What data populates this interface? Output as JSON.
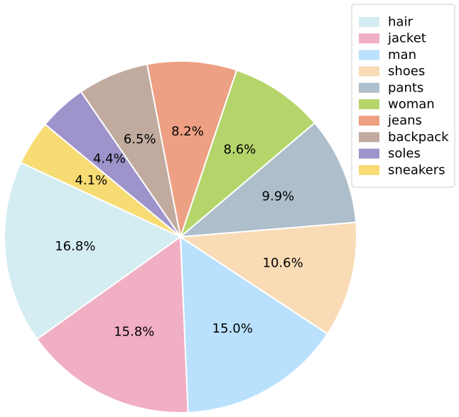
{
  "chart_data": {
    "type": "pie",
    "title": "",
    "labels": [
      "hair",
      "jacket",
      "man",
      "shoes",
      "pants",
      "woman",
      "jeans",
      "backpack",
      "soles",
      "sneakers"
    ],
    "values": [
      16.8,
      15.8,
      15.0,
      10.6,
      9.9,
      8.6,
      8.2,
      6.5,
      4.4,
      4.1
    ],
    "value_labels": [
      "16.8%",
      "15.8%",
      "15.0%",
      "10.6%",
      "9.9%",
      "8.6%",
      "8.2%",
      "6.5%",
      "4.4%",
      "4.1%"
    ],
    "colors": [
      "#d4edf2",
      "#f0afc2",
      "#b9e1fd",
      "#f9dbb6",
      "#aebfcb",
      "#b5d56b",
      "#eda083",
      "#c1ab9f",
      "#9e94cb",
      "#f7dc74"
    ],
    "start_angle_deg": 155,
    "direction": "counterclockwise",
    "legend_position": "top-right"
  }
}
